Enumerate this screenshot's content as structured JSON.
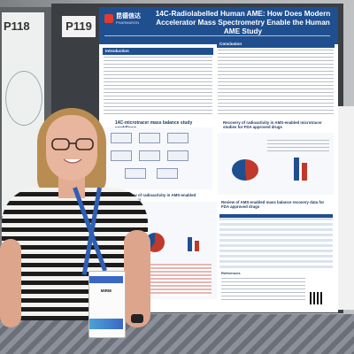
{
  "left_poster": {
    "code": "P118"
  },
  "center_poster": {
    "code": "P119",
    "logo": {
      "name_cn": "昆德信达",
      "name_en": "PHARMARON"
    },
    "title": "14C-Radiolabelled Human AME: How Does Modern Accelerator Mass Spectrometry Enable the Human AME Study",
    "sections": {
      "introduction": "Introduction",
      "conclusion": "Conclusion",
      "workflow": "14C-microtracer mass balance study workflows",
      "recovery": "Recovery of radioactivity in AMS-enabled microtracer studies for FDA approved drugs",
      "recovery_left": "Recovery of radioactivity in AMS-enabled microtracer",
      "review": "Review of AMS-enabled mass balance recovery data for FDA approved drugs",
      "references": "References"
    }
  },
  "badge": {
    "name": "MIRIE"
  },
  "colors": {
    "poster_header": "#1f4f8f",
    "lanyard": "#2f5fb3",
    "logo_red": "#e23b2e"
  }
}
